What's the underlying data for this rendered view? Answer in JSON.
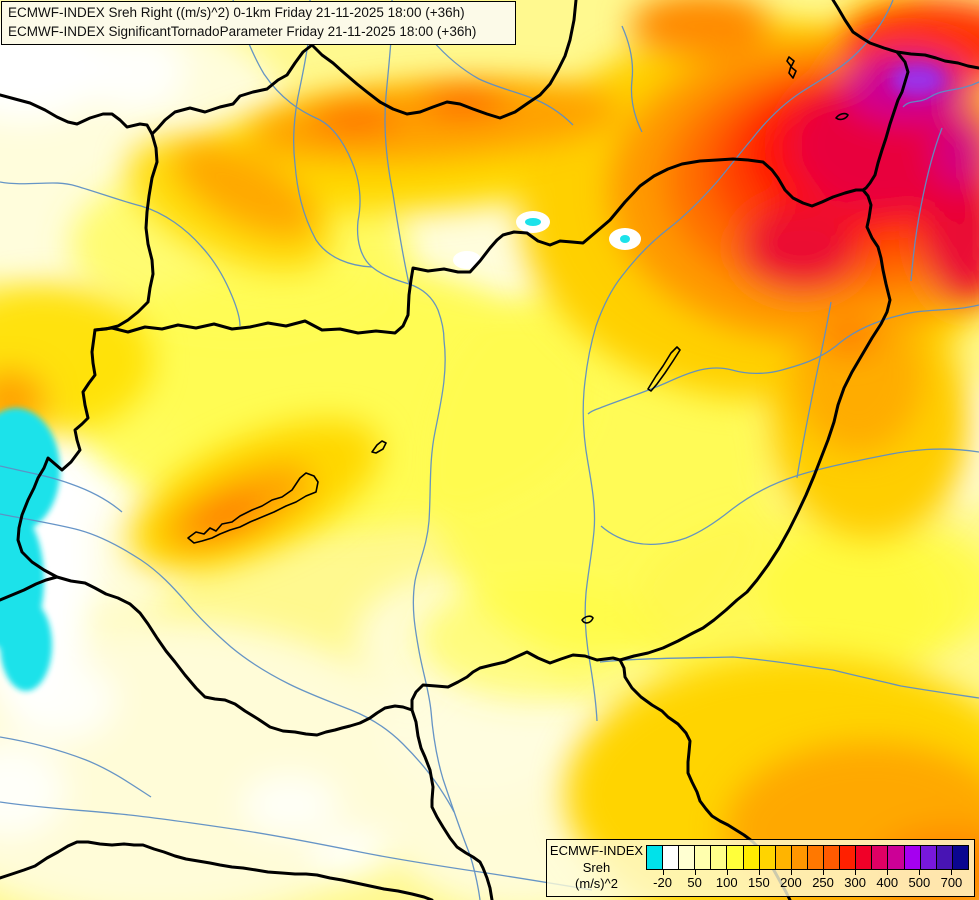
{
  "title": {
    "line1": "ECMWF-INDEX Sreh Right ((m/s)^2) 0-1km Friday 21-11-2025 18:00 (+36h)",
    "line2": "ECMWF-INDEX SignificantTornadoParameter Friday 21-11-2025 18:00 (+36h)"
  },
  "legend": {
    "title_lines": [
      "ECMWF-INDEX",
      "Sreh",
      "(m/s)^2"
    ],
    "ticks": [
      "-20",
      "50",
      "100",
      "150",
      "200",
      "250",
      "300",
      "400",
      "500",
      "700"
    ],
    "colors": [
      "#00E2EA",
      "#FFFFFF",
      "#FFFFD2",
      "#FFFFAE",
      "#FFFF8A",
      "#FFFF3A",
      "#FFEC00",
      "#FFD400",
      "#FFB400",
      "#FF9600",
      "#FF7800",
      "#FF5A00",
      "#FF2000",
      "#F00028",
      "#E00064",
      "#CC0096",
      "#A500F0",
      "#7818DC",
      "#4814B4",
      "#0A0690"
    ]
  },
  "map": {
    "region_colors": {
      "negative_cyan": "#1CE2EA",
      "low_cream": "#FFFDDC",
      "mid_yellow": "#FFF98F",
      "high_gold": "#FFD400",
      "higher_orange": "#FF9800",
      "severe_red": "#FF1200",
      "extreme_crimson": "#E8003C",
      "extreme_magenta": "#CC0096",
      "extreme_purple": "#9B30E8"
    },
    "borders_color": "#000000",
    "rivers_color": "#5E8FC4"
  }
}
